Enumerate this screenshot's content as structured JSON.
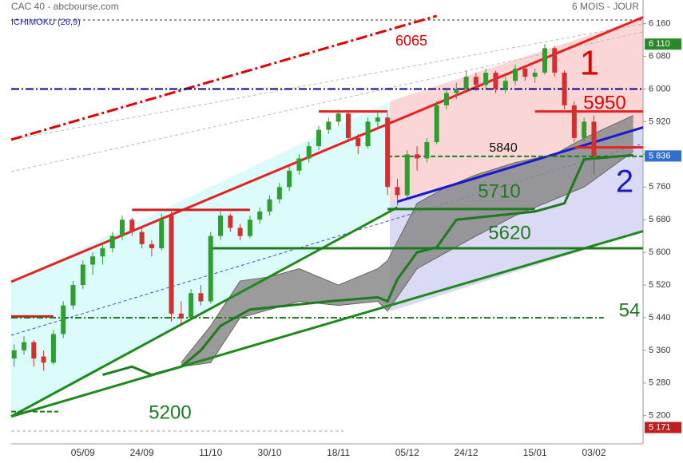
{
  "chart_data": {
    "type": "candlestick",
    "title": "CAC 40 - abcbourse.com",
    "subtitle": "6 MOIS - JOUR",
    "indicator": "ICHIMOKU (26,9)",
    "categories": [
      null,
      null,
      null,
      null,
      null,
      null,
      null,
      "05/09",
      null,
      null,
      null,
      null,
      null,
      "24/09",
      null,
      null,
      null,
      null,
      null,
      null,
      "11/10",
      null,
      null,
      null,
      null,
      null,
      "30/10",
      null,
      null,
      null,
      null,
      null,
      null,
      "18/11",
      null,
      null,
      null,
      null,
      null,
      null,
      "05/12",
      null,
      null,
      null,
      null,
      null,
      "24/12",
      null,
      null,
      null,
      null,
      null,
      null,
      "15/01",
      null,
      null,
      null,
      null,
      null,
      "03/02"
    ],
    "ohlc": [
      [
        5340,
        5375,
        5320,
        5360
      ],
      [
        5360,
        5395,
        5350,
        5380
      ],
      [
        5380,
        5385,
        5320,
        5340
      ],
      [
        5345,
        5360,
        5310,
        5330
      ],
      [
        5330,
        5410,
        5325,
        5400
      ],
      [
        5400,
        5480,
        5390,
        5470
      ],
      [
        5470,
        5530,
        5460,
        5520
      ],
      [
        5520,
        5580,
        5510,
        5570
      ],
      [
        5570,
        5600,
        5545,
        5590
      ],
      [
        5590,
        5620,
        5570,
        5610
      ],
      [
        5610,
        5650,
        5600,
        5640
      ],
      [
        5640,
        5690,
        5630,
        5680
      ],
      [
        5680,
        5685,
        5640,
        5650
      ],
      [
        5650,
        5660,
        5610,
        5620
      ],
      [
        5620,
        5630,
        5590,
        5610
      ],
      [
        5610,
        5695,
        5605,
        5680
      ],
      [
        5690,
        5700,
        5430,
        5450
      ],
      [
        5450,
        5480,
        5420,
        5440
      ],
      [
        5440,
        5510,
        5435,
        5500
      ],
      [
        5500,
        5520,
        5470,
        5480
      ],
      [
        5480,
        5650,
        5475,
        5640
      ],
      [
        5640,
        5700,
        5630,
        5690
      ],
      [
        5690,
        5695,
        5650,
        5660
      ],
      [
        5660,
        5670,
        5630,
        5640
      ],
      [
        5640,
        5690,
        5635,
        5680
      ],
      [
        5680,
        5710,
        5670,
        5700
      ],
      [
        5700,
        5740,
        5690,
        5730
      ],
      [
        5730,
        5770,
        5720,
        5760
      ],
      [
        5760,
        5810,
        5750,
        5800
      ],
      [
        5800,
        5840,
        5790,
        5830
      ],
      [
        5830,
        5870,
        5820,
        5860
      ],
      [
        5860,
        5910,
        5850,
        5900
      ],
      [
        5900,
        5930,
        5890,
        5920
      ],
      [
        5920,
        5950,
        5910,
        5940
      ],
      [
        5940,
        5945,
        5870,
        5880
      ],
      [
        5880,
        5890,
        5840,
        5860
      ],
      [
        5860,
        5930,
        5855,
        5920
      ],
      [
        5920,
        5945,
        5905,
        5930
      ],
      [
        5930,
        5940,
        5740,
        5760
      ],
      [
        5760,
        5780,
        5715,
        5740
      ],
      [
        5740,
        5850,
        5735,
        5840
      ],
      [
        5840,
        5860,
        5800,
        5830
      ],
      [
        5830,
        5880,
        5820,
        5870
      ],
      [
        5870,
        5970,
        5865,
        5960
      ],
      [
        5960,
        6000,
        5950,
        5990
      ],
      [
        5990,
        6015,
        5975,
        6000
      ],
      [
        6000,
        6045,
        5995,
        6030
      ],
      [
        6030,
        6040,
        5995,
        6010
      ],
      [
        6010,
        6050,
        6000,
        6040
      ],
      [
        6040,
        6045,
        5990,
        6000
      ],
      [
        6000,
        6030,
        5990,
        6020
      ],
      [
        6020,
        6060,
        6010,
        6050
      ],
      [
        6050,
        6055,
        6020,
        6030
      ],
      [
        6030,
        6050,
        6015,
        6040
      ],
      [
        6040,
        6110,
        6035,
        6100
      ],
      [
        6100,
        6105,
        6030,
        6040
      ],
      [
        6040,
        6045,
        5950,
        5960
      ],
      [
        5960,
        5970,
        5870,
        5880
      ],
      [
        5880,
        5930,
        5870,
        5920
      ],
      [
        5920,
        5935,
        5790,
        5836
      ]
    ],
    "up_color": "#2e9e2e",
    "down_color": "#d03030",
    "cloud": {
      "x": [
        17,
        20,
        23,
        26,
        29,
        33,
        37,
        38,
        41,
        44,
        47,
        51,
        55,
        58,
        63
      ],
      "upper": [
        5330,
        5420,
        5530,
        5540,
        5560,
        5520,
        5560,
        5580,
        5720,
        5760,
        5790,
        5820,
        5840,
        5880,
        5935
      ],
      "lower": [
        5320,
        5330,
        5440,
        5460,
        5480,
        5470,
        5480,
        5456,
        5560,
        5600,
        5640,
        5690,
        5730,
        5760,
        5847
      ],
      "color": "#8a8a8a"
    },
    "kijun": {
      "x": [
        9,
        12,
        14,
        17,
        19,
        21,
        24,
        28,
        32,
        37,
        38,
        39,
        41,
        43,
        45,
        49,
        53,
        56,
        58,
        63
      ],
      "values": [
        5300,
        5320,
        5300,
        5320,
        5360,
        5420,
        5460,
        5470,
        5480,
        5490,
        5480,
        5534,
        5600,
        5612,
        5680,
        5690,
        5700,
        5720,
        5828,
        5838
      ],
      "color": "#1e7a1e"
    },
    "lines": [
      {
        "from": [
          -0.3,
          5876
        ],
        "to": [
          43,
          6179
        ],
        "color": "#e00000",
        "width": 3,
        "dash": "14 4 3 4"
      },
      {
        "from": [
          -0.3,
          5528
        ],
        "to": [
          64,
          6176
        ],
        "color": "#e82020",
        "width": 3
      },
      {
        "from": [
          -0.3,
          6000
        ],
        "to": [
          64,
          6000
        ],
        "color": "#00008b",
        "width": 2,
        "dash": "10 3 2 3"
      },
      {
        "from": [
          -0.3,
          5198
        ],
        "to": [
          39,
          5710
        ],
        "color": "#1e8a1e",
        "width": 3
      },
      {
        "from": [
          -0.3,
          5198
        ],
        "to": [
          64,
          5652
        ],
        "color": "#1e8a1e",
        "width": 3
      },
      {
        "from": [
          39,
          5724
        ],
        "to": [
          64,
          5906
        ],
        "color": "#1a1acc",
        "width": 3
      },
      {
        "from": [
          31,
          5945
        ],
        "to": [
          38,
          5945
        ],
        "color": "#e82020",
        "width": 3
      },
      {
        "from": [
          53,
          5945
        ],
        "to": [
          64,
          5945
        ],
        "color": "#e82020",
        "width": 3
      },
      {
        "from": [
          57,
          5857
        ],
        "to": [
          64,
          5857
        ],
        "color": "#e82020",
        "width": 3
      },
      {
        "from": [
          12,
          5704
        ],
        "to": [
          24,
          5704
        ],
        "color": "#d02020",
        "width": 3
      },
      {
        "from": [
          -0.3,
          5443
        ],
        "to": [
          4,
          5443
        ],
        "color": "#d02020",
        "width": 3
      },
      {
        "from": [
          38,
          5706
        ],
        "to": [
          53,
          5706
        ],
        "color": "#1e7a1e",
        "width": 3
      },
      {
        "from": [
          20,
          5610
        ],
        "to": [
          64,
          5610
        ],
        "color": "#1e7a1e",
        "width": 3
      },
      {
        "from": [
          -0.3,
          5440
        ],
        "to": [
          60,
          5440
        ],
        "color": "#1e7a1e",
        "width": 2,
        "dash": "8 3 2 3"
      },
      {
        "from": [
          -0.3,
          5210
        ],
        "to": [
          4.5,
          5210
        ],
        "color": "#1e7a1e",
        "width": 2,
        "dash": "6 3"
      },
      {
        "from": [
          38,
          5835
        ],
        "to": [
          64,
          5835
        ],
        "color": "#1e7a1e",
        "width": 2,
        "dash": "6 3"
      }
    ],
    "annotations": [
      {
        "text": "6065",
        "color": "#e00000"
      },
      {
        "text": "1",
        "color": "#e00000"
      },
      {
        "text": "5950",
        "color": "#e00000"
      },
      {
        "text": "5840",
        "color": "#111111"
      },
      {
        "text": "2",
        "color": "#1a1acc"
      },
      {
        "text": "5710",
        "color": "#1e7a1e"
      },
      {
        "text": "5620",
        "color": "#1e7a1e"
      },
      {
        "text": "54",
        "color": "#1e7a1e"
      },
      {
        "text": "5200",
        "color": "#1e7a1e"
      }
    ],
    "price_tags": [
      {
        "value": 6110,
        "label": "6 110",
        "color": "#2a8a2a"
      },
      {
        "value": 5836,
        "label": "5 836",
        "color": "#2f6fd0"
      },
      {
        "value": 5171,
        "label": "5 171",
        "color": "#c02020"
      }
    ],
    "xlim": [
      -0.3,
      64
    ],
    "ylim": [
      5133,
      6218
    ],
    "yticks": [
      {
        "value": 5200,
        "label": "5 200"
      },
      {
        "value": 5280,
        "label": "5 280"
      },
      {
        "value": 5360,
        "label": "5 360"
      },
      {
        "value": 5440,
        "label": "5 440"
      },
      {
        "value": 5520,
        "label": "5 520"
      },
      {
        "value": 5600,
        "label": "5 600"
      },
      {
        "value": 5680,
        "label": "5 680"
      },
      {
        "value": 5760,
        "label": "5 760"
      },
      {
        "value": 5840,
        "label": "5 840"
      },
      {
        "value": 5920,
        "label": "5 920"
      },
      {
        "value": 6000,
        "label": "6 000"
      },
      {
        "value": 6080,
        "label": "6 080"
      },
      {
        "value": 6160,
        "label": "6 160"
      }
    ]
  }
}
